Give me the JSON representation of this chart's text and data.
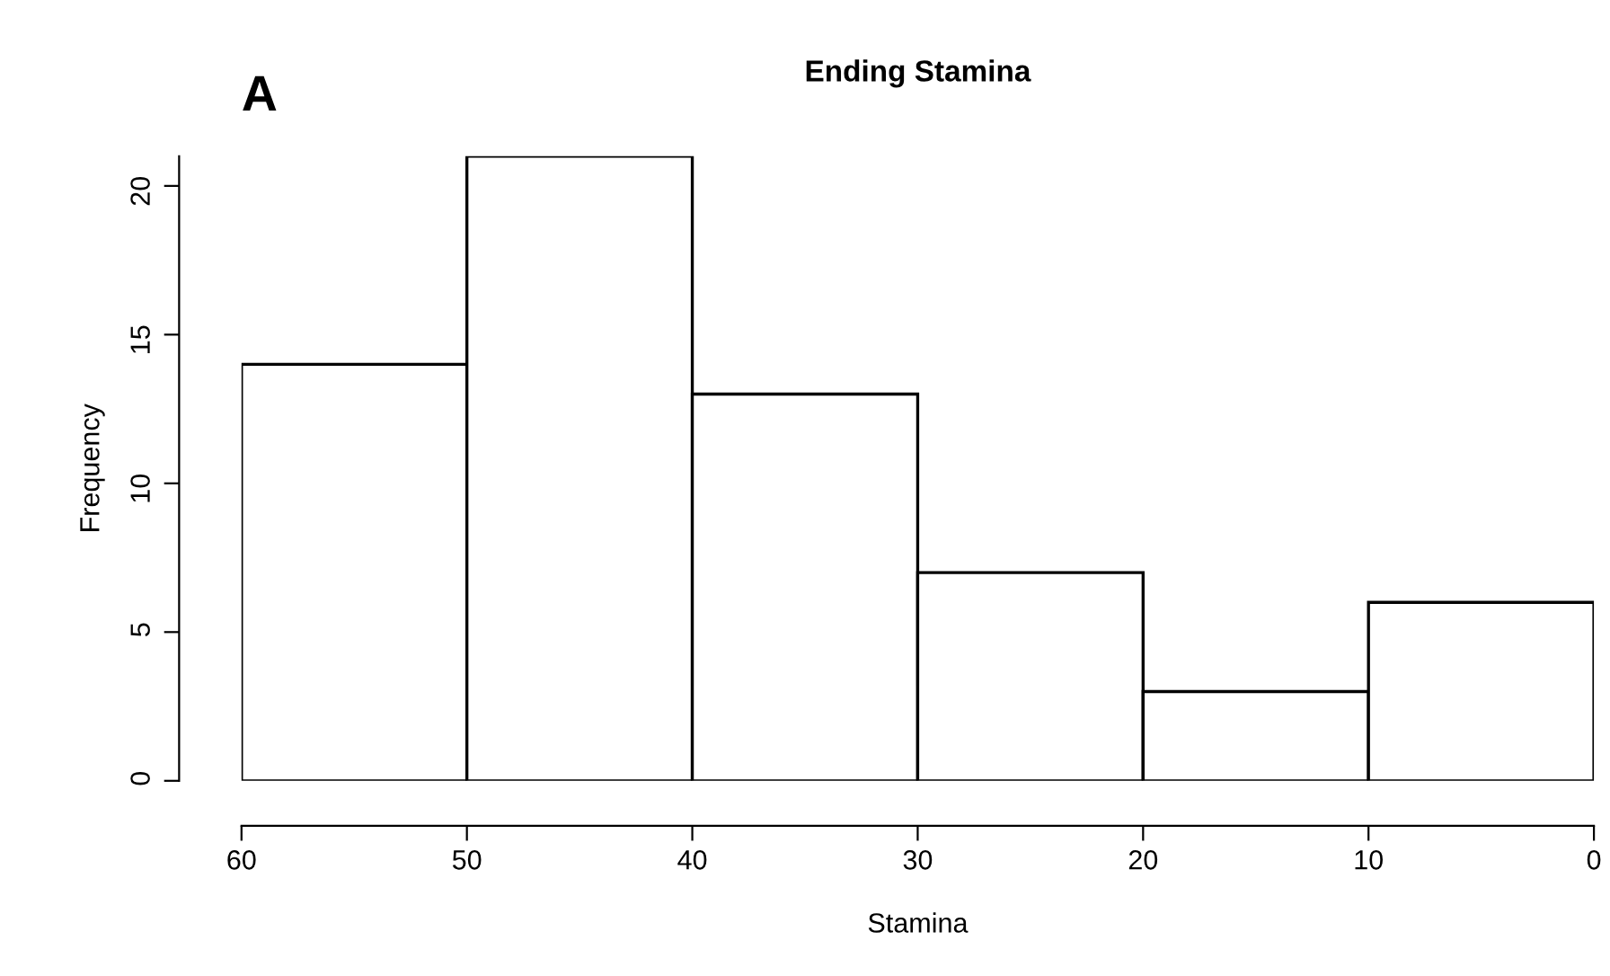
{
  "chart_data": {
    "type": "histogram",
    "title": "Ending Stamina",
    "xlabel": "Stamina",
    "ylabel": "Frequency",
    "annotations": [
      "A"
    ],
    "bins": [
      60,
      50,
      40,
      30,
      20,
      10,
      0
    ],
    "values": [
      14,
      21,
      13,
      7,
      3,
      6
    ],
    "color": "#ffffff",
    "xlim": [
      60,
      0
    ],
    "xticks": [
      60,
      50,
      40,
      30,
      20,
      10,
      0
    ],
    "ylim": [
      0,
      21
    ],
    "yticks": [
      0,
      5,
      10,
      15,
      20
    ],
    "grid": false,
    "legend": false
  }
}
